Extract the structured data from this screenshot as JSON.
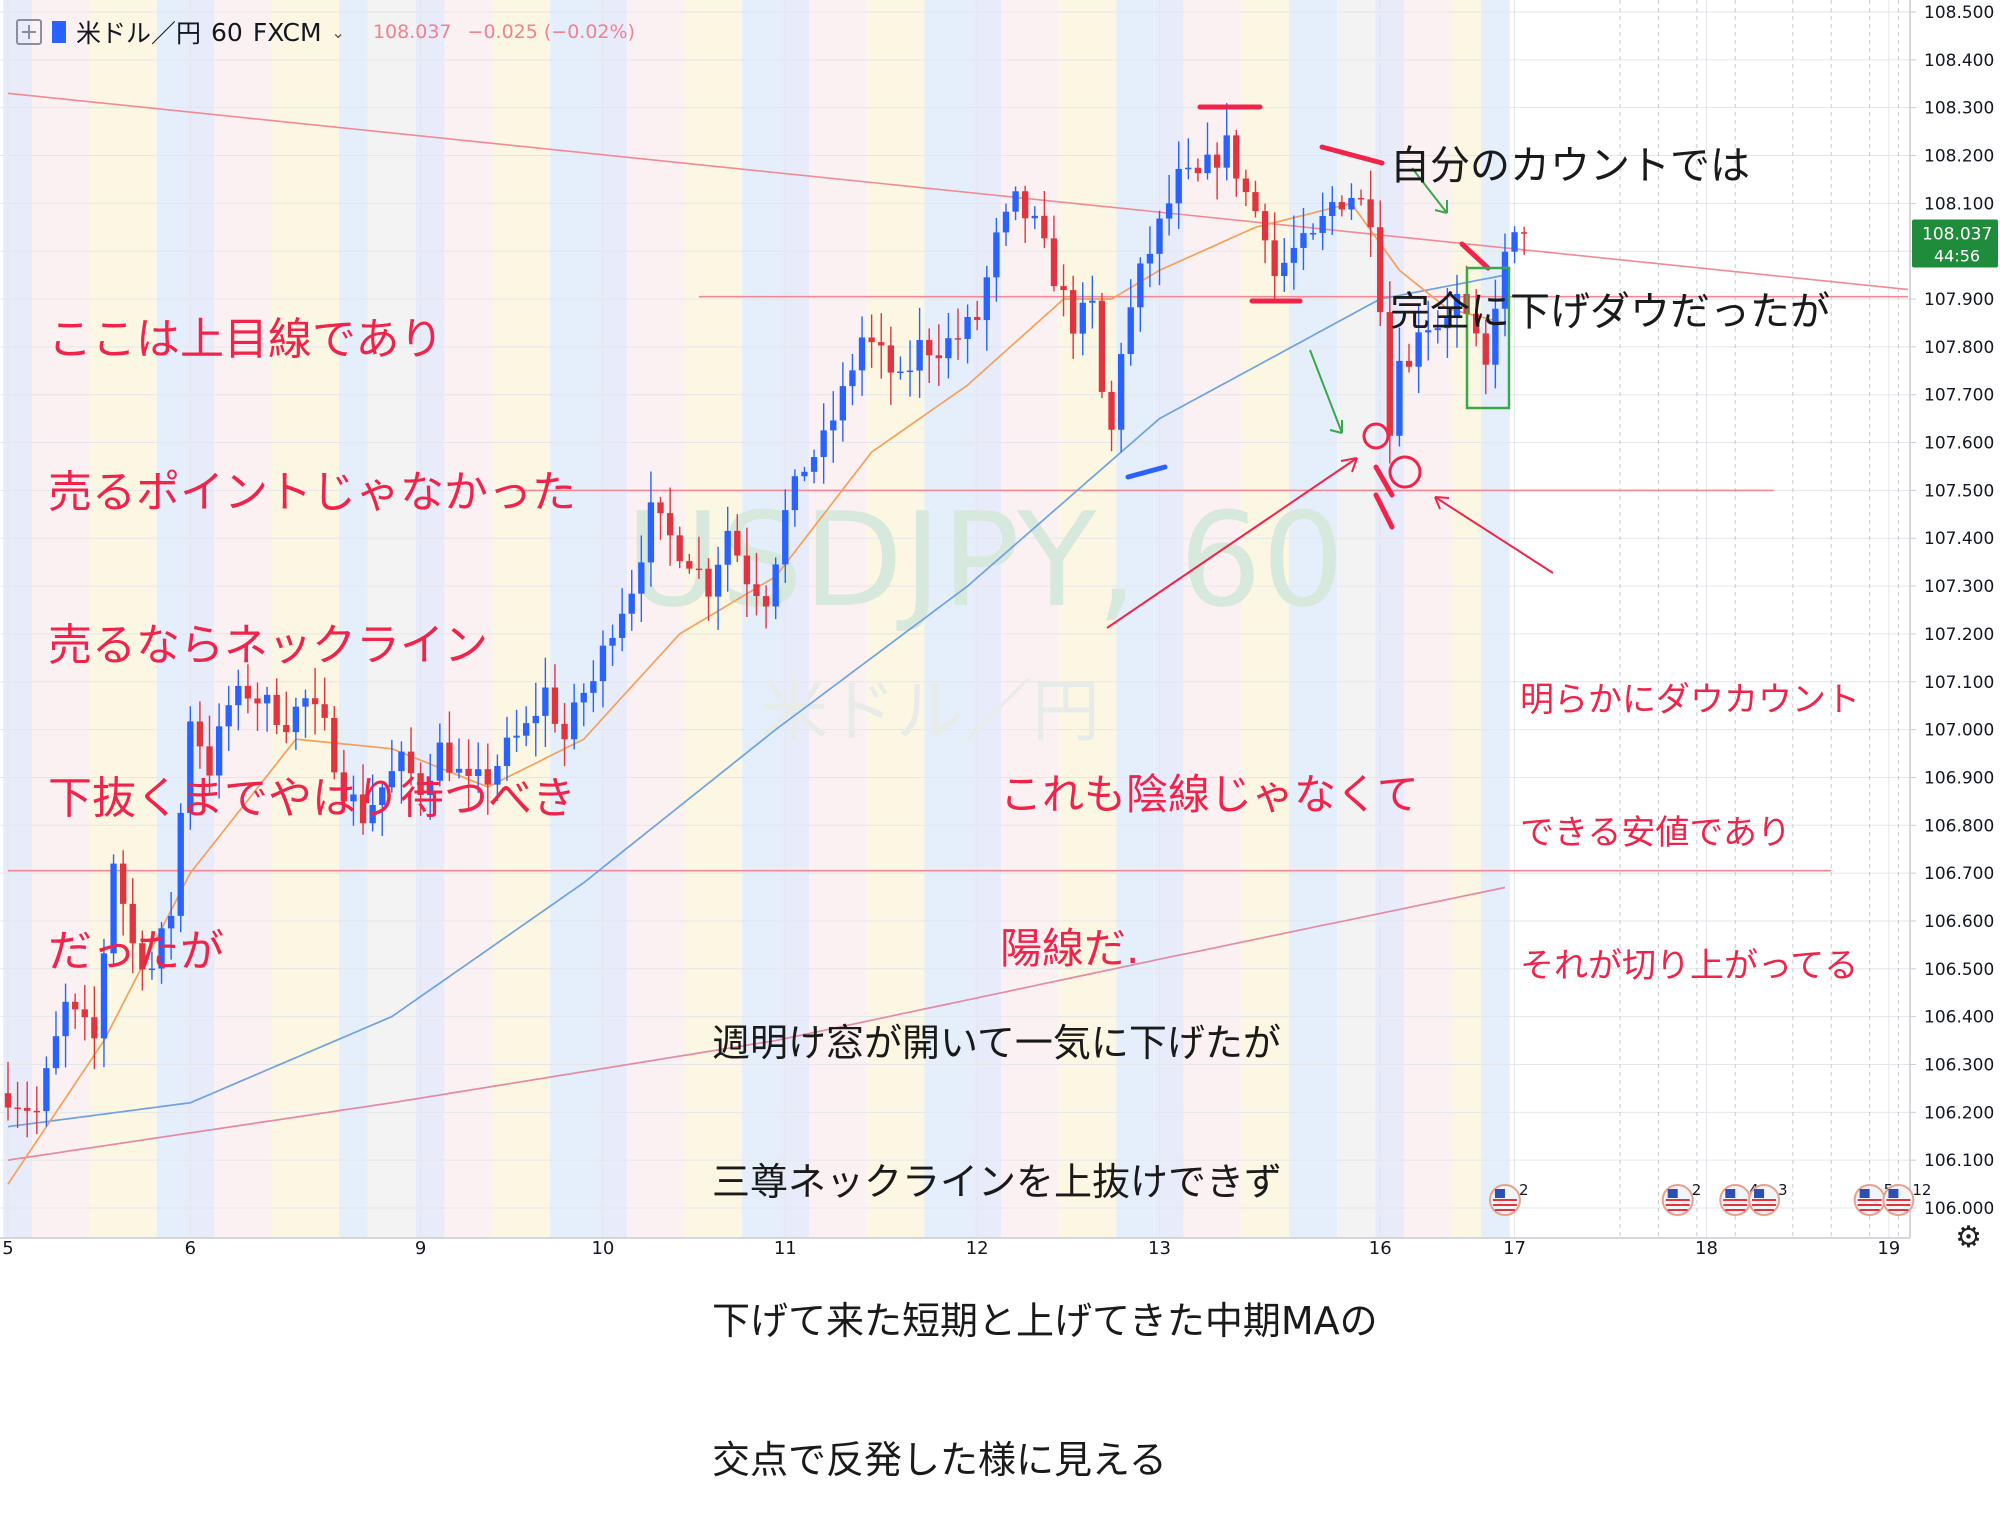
{
  "header": {
    "symbol": "米ドル／円",
    "interval": "60",
    "broker": "FXCM",
    "last": "108.037",
    "change": "−0.025 (−0.02%)"
  },
  "watermark": {
    "line1": "USDJPY, 60",
    "line2": "米ドル／円"
  },
  "price_tag": {
    "price": "108.037",
    "countdown": "44:56"
  },
  "chart_data": {
    "type": "candlestick",
    "symbol": "USDJPY",
    "timeframe": "60",
    "ylim": [
      105.97,
      108.52
    ],
    "y_ticks": [
      "106.000",
      "106.100",
      "106.200",
      "106.300",
      "106.400",
      "106.500",
      "106.600",
      "106.700",
      "106.800",
      "106.900",
      "107.000",
      "107.100",
      "107.200",
      "107.300",
      "107.400",
      "107.500",
      "107.600",
      "107.700",
      "107.800",
      "107.900",
      "108.000",
      "108.100",
      "108.200",
      "108.300",
      "108.400",
      "108.500"
    ],
    "x_ticks": [
      {
        "label": "5",
        "i": 0
      },
      {
        "label": "6",
        "i": 19
      },
      {
        "label": "9",
        "i": 43
      },
      {
        "label": "10",
        "i": 62
      },
      {
        "label": "11",
        "i": 81
      },
      {
        "label": "12",
        "i": 101
      },
      {
        "label": "13",
        "i": 120
      },
      {
        "label": "16",
        "i": 143
      },
      {
        "label": "17",
        "i": 157
      },
      {
        "label": "18",
        "i": 177
      },
      {
        "label": "19",
        "i": 196
      }
    ],
    "x_count": 198,
    "candle_count": 159,
    "path_anchors": [
      [
        0,
        106.24
      ],
      [
        3,
        106.2
      ],
      [
        6,
        106.42
      ],
      [
        9,
        106.35
      ],
      [
        11,
        106.73
      ],
      [
        13,
        106.55
      ],
      [
        15,
        106.5
      ],
      [
        17,
        106.62
      ],
      [
        19,
        107.03
      ],
      [
        21,
        106.92
      ],
      [
        23,
        107.05
      ],
      [
        25,
        107.08
      ],
      [
        27,
        107.05
      ],
      [
        29,
        107.02
      ],
      [
        31,
        107.06
      ],
      [
        33,
        107.0
      ],
      [
        35,
        106.88
      ],
      [
        37,
        106.82
      ],
      [
        39,
        106.88
      ],
      [
        41,
        106.93
      ],
      [
        43,
        106.88
      ],
      [
        45,
        106.96
      ],
      [
        48,
        106.88
      ],
      [
        50,
        106.9
      ],
      [
        52,
        106.96
      ],
      [
        54,
        107.0
      ],
      [
        56,
        107.08
      ],
      [
        58,
        106.98
      ],
      [
        60,
        107.08
      ],
      [
        61,
        107.1
      ],
      [
        63,
        107.22
      ],
      [
        65,
        107.3
      ],
      [
        67,
        107.45
      ],
      [
        69,
        107.4
      ],
      [
        71,
        107.36
      ],
      [
        73,
        107.3
      ],
      [
        75,
        107.42
      ],
      [
        77,
        107.32
      ],
      [
        79,
        107.28
      ],
      [
        81,
        107.45
      ],
      [
        83,
        107.55
      ],
      [
        85,
        107.6
      ],
      [
        87,
        107.7
      ],
      [
        89,
        107.82
      ],
      [
        91,
        107.78
      ],
      [
        93,
        107.72
      ],
      [
        95,
        107.8
      ],
      [
        97,
        107.8
      ],
      [
        99,
        107.82
      ],
      [
        101,
        107.86
      ],
      [
        103,
        108.02
      ],
      [
        105,
        108.1
      ],
      [
        107,
        108.05
      ],
      [
        109,
        107.95
      ],
      [
        111,
        107.85
      ],
      [
        113,
        107.88
      ],
      [
        114,
        107.7
      ],
      [
        115,
        107.62
      ],
      [
        116,
        107.8
      ],
      [
        118,
        107.95
      ],
      [
        120,
        108.05
      ],
      [
        122,
        108.15
      ],
      [
        124,
        108.15
      ],
      [
        126,
        108.2
      ],
      [
        127,
        108.22
      ],
      [
        129,
        108.12
      ],
      [
        131,
        108.05
      ],
      [
        132,
        107.95
      ],
      [
        134,
        108.0
      ],
      [
        136,
        108.02
      ],
      [
        138,
        108.1
      ],
      [
        140,
        108.12
      ],
      [
        142,
        108.08
      ],
      [
        143,
        107.9
      ],
      [
        144,
        107.62
      ],
      [
        145,
        107.8
      ],
      [
        146,
        107.75
      ],
      [
        147,
        107.85
      ],
      [
        149,
        107.85
      ],
      [
        151,
        107.9
      ],
      [
        153,
        107.8
      ],
      [
        154,
        107.75
      ],
      [
        155,
        107.9
      ],
      [
        156,
        107.98
      ],
      [
        157,
        108.02
      ],
      [
        158,
        108.037
      ]
    ],
    "ma_short_anchors": [
      [
        0,
        106.05
      ],
      [
        10,
        106.35
      ],
      [
        19,
        106.7
      ],
      [
        30,
        106.98
      ],
      [
        40,
        106.96
      ],
      [
        50,
        106.88
      ],
      [
        60,
        106.98
      ],
      [
        70,
        107.2
      ],
      [
        80,
        107.32
      ],
      [
        90,
        107.58
      ],
      [
        100,
        107.72
      ],
      [
        110,
        107.9
      ],
      [
        115,
        107.9
      ],
      [
        120,
        107.96
      ],
      [
        130,
        108.05
      ],
      [
        140,
        108.1
      ],
      [
        145,
        107.96
      ],
      [
        150,
        107.88
      ],
      [
        156,
        107.85
      ]
    ],
    "ma_mid_anchors": [
      [
        0,
        106.17
      ],
      [
        19,
        106.22
      ],
      [
        40,
        106.4
      ],
      [
        60,
        106.68
      ],
      [
        80,
        107.0
      ],
      [
        100,
        107.3
      ],
      [
        120,
        107.65
      ],
      [
        143,
        107.9
      ],
      [
        156,
        107.95
      ]
    ],
    "ma_long_anchors": [
      [
        0,
        106.1
      ],
      [
        40,
        106.22
      ],
      [
        80,
        106.35
      ],
      [
        120,
        106.52
      ],
      [
        156,
        106.67
      ]
    ],
    "hlines": [
      {
        "price": 107.905,
        "from": 72,
        "to": 198
      },
      {
        "price": 107.5,
        "from": 53,
        "to": 184
      },
      {
        "price": 106.705,
        "from": 0,
        "to": 190
      }
    ],
    "trendline": {
      "from": [
        0,
        108.33
      ],
      "to": [
        198,
        107.92
      ]
    },
    "session_bands": [
      [
        0,
        3,
        "#e8ecfa"
      ],
      [
        3,
        9,
        "#fbf1f3"
      ],
      [
        9,
        16,
        "#fcf7e3"
      ],
      [
        16,
        19,
        "#e5effc"
      ],
      [
        19,
        22,
        "#e8ecfa"
      ],
      [
        22,
        28,
        "#fbf1f3"
      ],
      [
        28,
        35,
        "#fcf7e3"
      ],
      [
        35,
        38,
        "#e5effc"
      ],
      [
        38,
        43,
        "#f3f3f3"
      ],
      [
        43,
        46,
        "#e8ecfa"
      ],
      [
        46,
        51,
        "#fbf1f3"
      ],
      [
        51,
        57,
        "#fcf7e3"
      ],
      [
        57,
        62,
        "#e5effc"
      ],
      [
        62,
        65,
        "#e8ecfa"
      ],
      [
        65,
        71,
        "#fbf1f3"
      ],
      [
        71,
        77,
        "#fcf7e3"
      ],
      [
        77,
        81,
        "#e5effc"
      ],
      [
        81,
        84,
        "#e8ecfa"
      ],
      [
        84,
        90,
        "#fbf1f3"
      ],
      [
        90,
        96,
        "#fcf7e3"
      ],
      [
        96,
        101,
        "#e5effc"
      ],
      [
        101,
        104,
        "#e8ecfa"
      ],
      [
        104,
        110,
        "#fbf1f3"
      ],
      [
        110,
        116,
        "#fcf7e3"
      ],
      [
        116,
        120,
        "#e5effc"
      ],
      [
        120,
        123,
        "#e8ecfa"
      ],
      [
        123,
        129,
        "#fbf1f3"
      ],
      [
        129,
        134,
        "#fcf7e3"
      ],
      [
        134,
        139,
        "#e5effc"
      ],
      [
        139,
        143,
        "#f3f3f3"
      ],
      [
        143,
        146,
        "#e8ecfa"
      ],
      [
        146,
        151,
        "#fbf1f3"
      ],
      [
        151,
        154,
        "#fcf7e3"
      ],
      [
        154,
        157,
        "#e5effc"
      ]
    ],
    "event_markers": [
      {
        "i": 156,
        "count": "2"
      },
      {
        "i": 174,
        "count": "2"
      },
      {
        "i": 180,
        "count": "4"
      },
      {
        "i": 183,
        "count": "3"
      },
      {
        "i": 194,
        "count": "5"
      },
      {
        "i": 197,
        "count": "12"
      }
    ]
  },
  "annotations": {
    "top_right": [
      "自分のカウントでは",
      "完全に下げダウだったが"
    ],
    "left": [
      "ここは上目線であり",
      "売るポイントじゃなかった",
      "売るならネックライン",
      "下抜くまでやはり待つべき",
      "だったが"
    ],
    "middle": [
      "これも陰線じゃなくて",
      "陽線だ."
    ],
    "right": [
      "明らかにダウカウント",
      "できる安値であり",
      "それが切り上がってる"
    ],
    "bottom": [
      "週明け窓が開いて一気に下げたが",
      "三尊ネックラインを上抜けできず",
      "下げて来た短期と上げてきた中期MAの",
      "交点で反発した様に見える"
    ]
  },
  "colors": {
    "up": "#2962ff",
    "down": "#e0353f",
    "ma_short": "#f5a05a",
    "ma_mid": "#6fa1e0",
    "ma_long": "#e28aa6",
    "hline": "#f08a94",
    "annotation_red": "#f0244b",
    "annotation_dark": "#1a1a1a",
    "markup_green": "#3aa84a",
    "price_tag": "#1e8c3a"
  }
}
